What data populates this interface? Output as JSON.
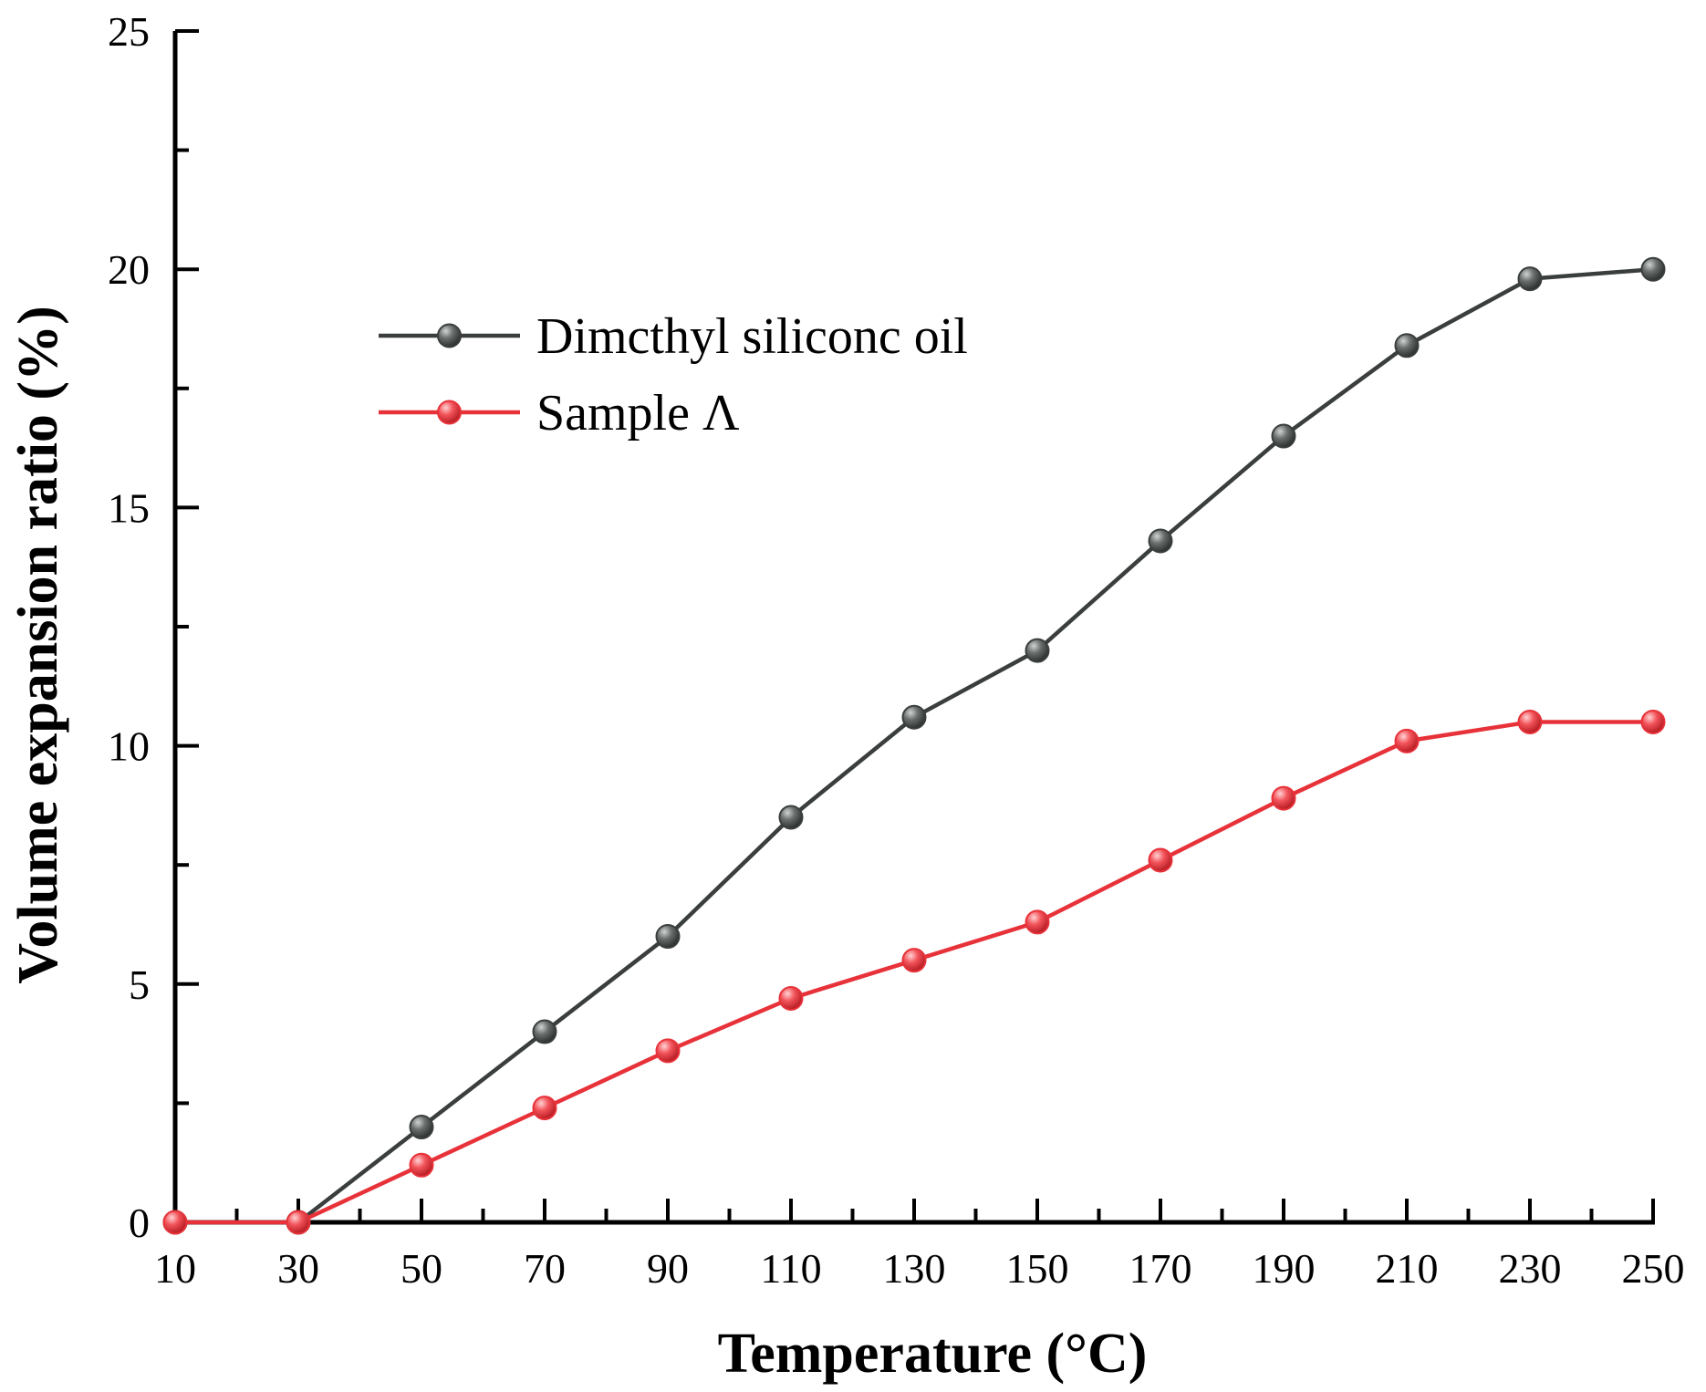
{
  "chart_data": {
    "type": "line",
    "title": "",
    "xlabel": "Temperature (°C)",
    "ylabel": "Volume expansion ratio (%)",
    "x": [
      10,
      30,
      50,
      70,
      90,
      110,
      130,
      150,
      170,
      190,
      210,
      230,
      250
    ],
    "xlim": [
      10,
      250
    ],
    "ylim": [
      0,
      25
    ],
    "x_ticks": [
      10,
      30,
      50,
      70,
      90,
      110,
      130,
      150,
      170,
      190,
      210,
      230,
      250
    ],
    "y_ticks": [
      0,
      5,
      10,
      15,
      20,
      25
    ],
    "grid": false,
    "legend_position": "upper-left",
    "series": [
      {
        "name": "Dimcthyl siliconc oil",
        "color": "#3a3f3d",
        "marker_color": "#555a58",
        "values": [
          0,
          0,
          2.0,
          4.0,
          6.0,
          8.5,
          10.6,
          12.0,
          14.3,
          16.5,
          18.4,
          19.8,
          20.0
        ]
      },
      {
        "name": "Sample Λ",
        "color": "#e8323a",
        "marker_color": "#f04a50",
        "values": [
          0,
          0,
          1.2,
          2.4,
          3.6,
          4.7,
          5.5,
          6.3,
          7.6,
          8.9,
          10.1,
          10.5,
          10.5
        ]
      }
    ]
  }
}
